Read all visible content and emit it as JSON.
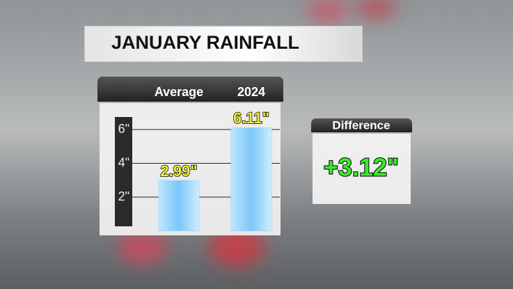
{
  "chart_data": {
    "type": "bar",
    "title": "JANUARY RAINFALL",
    "categories": [
      "Average",
      "2024"
    ],
    "values": [
      2.99,
      6.11
    ],
    "value_labels": [
      "2.99\"",
      "6.11\""
    ],
    "color": "#8fd0fa",
    "ylim": [
      0,
      7
    ],
    "yticks": [
      {
        "value": 2,
        "label": "2\""
      },
      {
        "value": 4,
        "label": "4\""
      },
      {
        "value": 6,
        "label": "6\""
      }
    ],
    "grid": true
  },
  "difference": {
    "title": "Difference",
    "text": "+3.12\""
  }
}
